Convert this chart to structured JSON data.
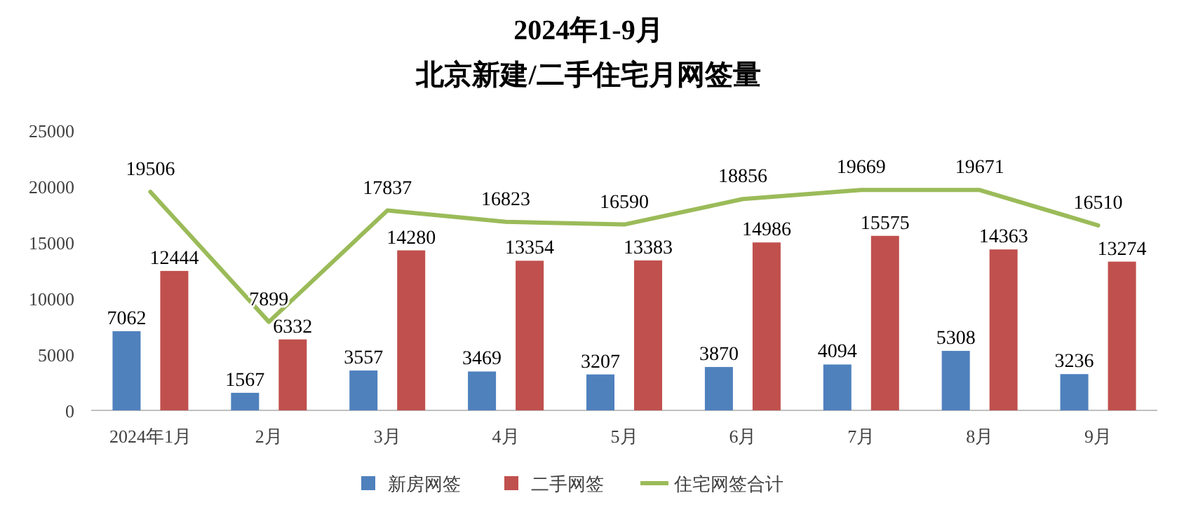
{
  "chart_data": {
    "type": "bar",
    "title": "2024年1-9月",
    "subtitle": "北京新建/二手住宅月网签量",
    "categories": [
      "2024年1月",
      "2月",
      "3月",
      "4月",
      "5月",
      "6月",
      "7月",
      "8月",
      "9月"
    ],
    "series": [
      {
        "name": "新房网签",
        "color": "#4f81bd",
        "values": [
          7062,
          1567,
          3557,
          3469,
          3207,
          3870,
          4094,
          5308,
          3236
        ]
      },
      {
        "name": "二手网签",
        "color": "#c0504d",
        "values": [
          12444,
          6332,
          14280,
          13354,
          13383,
          14986,
          15575,
          14363,
          13274
        ]
      },
      {
        "name": "住宅网签合计",
        "type": "line",
        "color": "#9bbb59",
        "values": [
          19506,
          7899,
          17837,
          16823,
          16590,
          18856,
          19669,
          19671,
          16510
        ]
      }
    ],
    "ylim": [
      0,
      25000
    ],
    "yticks": [
      0,
      5000,
      10000,
      15000,
      20000,
      25000
    ],
    "data_labels": true,
    "legend": "bottom"
  }
}
